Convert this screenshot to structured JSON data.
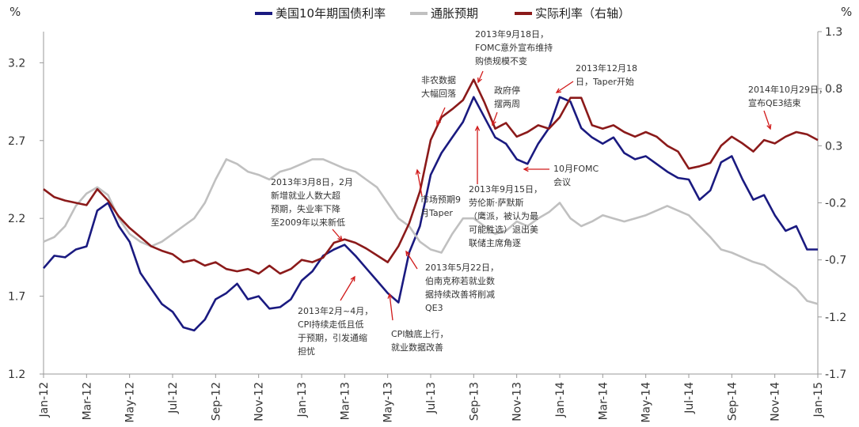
{
  "chart_data": {
    "type": "line",
    "left_unit": "%",
    "right_unit": "%",
    "left_axis": {
      "ticks": [
        1.2,
        1.7,
        2.2,
        2.7,
        3.2
      ],
      "labels": [
        "1.2",
        "1.7",
        "2.2",
        "2.7",
        "3.2"
      ],
      "ylim": [
        1.2,
        3.4
      ]
    },
    "right_axis": {
      "ticks": [
        -1.7,
        -1.2,
        -0.7,
        -0.2,
        0.3,
        0.8,
        1.3
      ],
      "labels": [
        "-1.7",
        "-1.2",
        "-0.7",
        "-0.2",
        "0.3",
        "0.8",
        "1.3"
      ],
      "ylim": [
        -1.7,
        1.3
      ]
    },
    "x_ticks": [
      "Jan-12",
      "Mar-12",
      "May-12",
      "Jul-12",
      "Sep-12",
      "Nov-12",
      "Jan-13",
      "Mar-13",
      "May-13",
      "Jul-13",
      "Sep-13",
      "Nov-13",
      "Jan-14",
      "Mar-14",
      "May-14",
      "Jul-14",
      "Sep-14",
      "Nov-14",
      "Jan-15"
    ],
    "x_unit": "month index from Jan-12",
    "grid": false,
    "legend_position": "top",
    "series": [
      {
        "name": "美国10年期国债利率",
        "axis": "left",
        "color": "#1a1a80",
        "x": [
          0,
          0.5,
          1,
          1.5,
          2,
          2.5,
          3,
          3.5,
          4,
          4.5,
          5,
          5.5,
          6,
          6.5,
          7,
          7.5,
          8,
          8.5,
          9,
          9.5,
          10,
          10.5,
          11,
          11.5,
          12,
          12.5,
          13,
          13.5,
          14,
          14.5,
          15,
          15.5,
          16,
          16.5,
          17,
          17.5,
          18,
          18.5,
          19,
          19.5,
          20,
          20.5,
          21,
          21.5,
          22,
          22.5,
          23,
          23.5,
          24,
          24.5,
          25,
          25.5,
          26,
          26.5,
          27,
          27.5,
          28,
          28.5,
          29,
          29.5,
          30,
          30.5,
          31,
          31.5,
          32,
          32.5,
          33,
          33.5,
          34,
          34.5,
          35,
          35.5,
          36
        ],
        "values": [
          1.88,
          1.96,
          1.95,
          2.0,
          2.02,
          2.25,
          2.3,
          2.15,
          2.05,
          1.85,
          1.75,
          1.65,
          1.6,
          1.5,
          1.48,
          1.55,
          1.68,
          1.72,
          1.78,
          1.68,
          1.7,
          1.62,
          1.63,
          1.68,
          1.8,
          1.86,
          1.96,
          2.0,
          2.03,
          1.96,
          1.88,
          1.8,
          1.72,
          1.66,
          1.98,
          2.15,
          2.48,
          2.62,
          2.72,
          2.82,
          2.98,
          2.85,
          2.72,
          2.68,
          2.58,
          2.55,
          2.68,
          2.78,
          2.98,
          2.95,
          2.78,
          2.72,
          2.68,
          2.72,
          2.62,
          2.58,
          2.6,
          2.55,
          2.5,
          2.46,
          2.45,
          2.32,
          2.38,
          2.56,
          2.6,
          2.45,
          2.32,
          2.35,
          2.22,
          2.12,
          2.15,
          2.0,
          2.0
        ]
      },
      {
        "name": "通胀预期",
        "axis": "left",
        "color": "#c0c0c0",
        "x": [
          0,
          0.5,
          1,
          1.5,
          2,
          2.5,
          3,
          3.5,
          4,
          4.5,
          5,
          5.5,
          6,
          6.5,
          7,
          7.5,
          8,
          8.5,
          9,
          9.5,
          10,
          10.5,
          11,
          11.5,
          12,
          12.5,
          13,
          13.5,
          14,
          14.5,
          15,
          15.5,
          16,
          16.5,
          17,
          17.5,
          18,
          18.5,
          19,
          19.5,
          20,
          20.5,
          21,
          21.5,
          22,
          22.5,
          23,
          23.5,
          24,
          24.5,
          25,
          25.5,
          26,
          26.5,
          27,
          27.5,
          28,
          28.5,
          29,
          29.5,
          30,
          30.5,
          31,
          31.5,
          32,
          32.5,
          33,
          33.5,
          34,
          34.5,
          35,
          35.5,
          36
        ],
        "values": [
          2.05,
          2.08,
          2.15,
          2.28,
          2.36,
          2.4,
          2.35,
          2.2,
          2.1,
          2.05,
          2.02,
          2.05,
          2.1,
          2.15,
          2.2,
          2.3,
          2.45,
          2.58,
          2.55,
          2.5,
          2.48,
          2.45,
          2.5,
          2.52,
          2.55,
          2.58,
          2.58,
          2.55,
          2.52,
          2.5,
          2.45,
          2.4,
          2.3,
          2.2,
          2.15,
          2.05,
          2.0,
          1.98,
          2.1,
          2.2,
          2.2,
          2.15,
          2.1,
          2.12,
          2.18,
          2.15,
          2.2,
          2.24,
          2.3,
          2.2,
          2.15,
          2.18,
          2.22,
          2.2,
          2.18,
          2.2,
          2.22,
          2.25,
          2.28,
          2.25,
          2.22,
          2.15,
          2.08,
          2.0,
          1.98,
          1.95,
          1.92,
          1.9,
          1.85,
          1.8,
          1.75,
          1.67,
          1.65
        ]
      },
      {
        "name": "实际利率（右轴）",
        "axis": "right",
        "color": "#8b1a1a",
        "x": [
          0,
          0.5,
          1,
          1.5,
          2,
          2.5,
          3,
          3.5,
          4,
          4.5,
          5,
          5.5,
          6,
          6.5,
          7,
          7.5,
          8,
          8.5,
          9,
          9.5,
          10,
          10.5,
          11,
          11.5,
          12,
          12.5,
          13,
          13.5,
          14,
          14.5,
          15,
          15.5,
          16,
          16.5,
          17,
          17.5,
          18,
          18.5,
          19,
          19.5,
          20,
          20.5,
          21,
          21.5,
          22,
          22.5,
          23,
          23.5,
          24,
          24.5,
          25,
          25.5,
          26,
          26.5,
          27,
          27.5,
          28,
          28.5,
          29,
          29.5,
          30,
          30.5,
          31,
          31.5,
          32,
          32.5,
          33,
          33.5,
          34,
          34.5,
          35,
          35.5,
          36
        ],
        "values": [
          -0.08,
          -0.15,
          -0.18,
          -0.2,
          -0.22,
          -0.08,
          -0.18,
          -0.32,
          -0.42,
          -0.5,
          -0.58,
          -0.62,
          -0.65,
          -0.72,
          -0.7,
          -0.75,
          -0.72,
          -0.78,
          -0.8,
          -0.78,
          -0.82,
          -0.75,
          -0.82,
          -0.78,
          -0.7,
          -0.72,
          -0.68,
          -0.55,
          -0.52,
          -0.55,
          -0.6,
          -0.66,
          -0.72,
          -0.58,
          -0.38,
          -0.1,
          0.35,
          0.55,
          0.62,
          0.7,
          0.88,
          0.68,
          0.45,
          0.5,
          0.38,
          0.42,
          0.48,
          0.45,
          0.55,
          0.72,
          0.72,
          0.48,
          0.45,
          0.48,
          0.42,
          0.38,
          0.42,
          0.38,
          0.3,
          0.25,
          0.1,
          0.12,
          0.15,
          0.3,
          0.38,
          0.32,
          0.25,
          0.35,
          0.32,
          0.38,
          0.42,
          0.4,
          0.35
        ]
      }
    ],
    "annotations": [
      {
        "lines": [
          "2013年9月18日，",
          "FOMC意外宣布维持",
          "购债规模不变"
        ]
      },
      {
        "lines": [
          "非农数据",
          "大幅回落"
        ]
      },
      {
        "lines": [
          "政府停",
          "摆两周"
        ]
      },
      {
        "lines": [
          "2013年12月18",
          "日，Taper开始"
        ]
      },
      {
        "lines": [
          "2014年10月29日，",
          "宣布QE3结束"
        ]
      },
      {
        "lines": [
          "10月FOMC",
          "会议"
        ]
      },
      {
        "lines": [
          "2013年3月8日，2月",
          "新增就业人数大超",
          "预期，失业率下降",
          "至2009年以来新低"
        ]
      },
      {
        "lines": [
          "市场预期9",
          "月Taper"
        ]
      },
      {
        "lines": [
          "2013年9月15日，",
          "劳伦斯·萨默斯",
          "（鹰派，被认为最",
          "可能胜选）退出美",
          "联储主席角逐"
        ]
      },
      {
        "lines": [
          "2013年5月22日，",
          "伯南克称若就业数",
          "据持续改善将削减",
          "QE3"
        ]
      },
      {
        "lines": [
          "2013年2月~4月，",
          "CPI持续走低且低",
          "于预期，引发通缩",
          "担忧"
        ]
      },
      {
        "lines": [
          "CPI触底上行，",
          "就业数据改善"
        ]
      }
    ]
  }
}
